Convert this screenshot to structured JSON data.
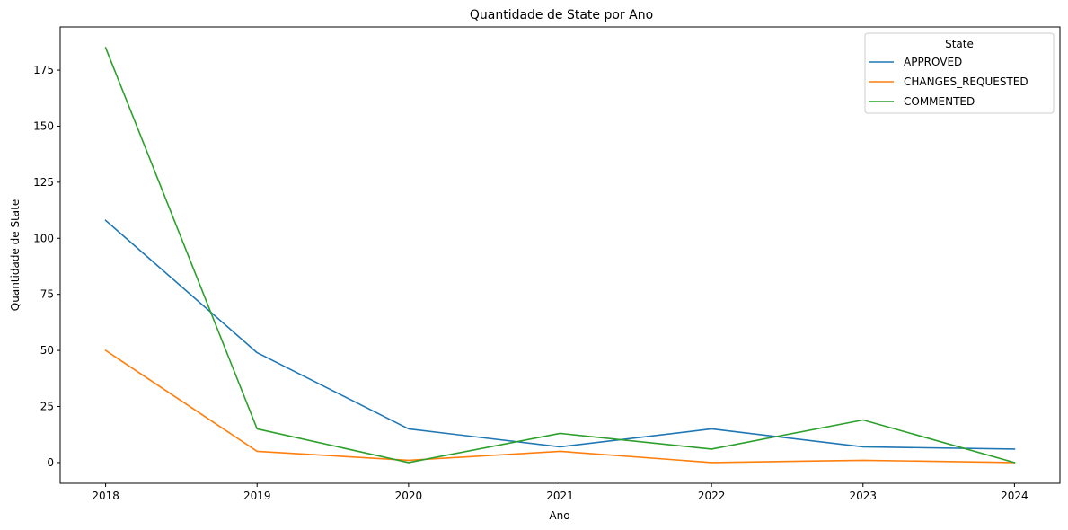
{
  "chart_data": {
    "type": "line",
    "title": "Quantidade de State por Ano",
    "xlabel": "Ano",
    "ylabel": "Quantidade de State",
    "x": [
      2018,
      2019,
      2020,
      2021,
      2022,
      2023,
      2024
    ],
    "xlim": [
      2017.7,
      2024.3
    ],
    "ylim": [
      -9.25,
      194.25
    ],
    "yticks": [
      0,
      25,
      50,
      75,
      100,
      125,
      150,
      175
    ],
    "grid": false,
    "legend": {
      "title": "State",
      "position": "top-right"
    },
    "series": [
      {
        "name": "APPROVED",
        "color": "#1f77b4",
        "values": [
          108,
          49,
          15,
          7,
          15,
          7,
          6
        ]
      },
      {
        "name": "CHANGES_REQUESTED",
        "color": "#ff7f0e",
        "values": [
          50,
          5,
          1,
          5,
          0,
          1,
          0
        ]
      },
      {
        "name": "COMMENTED",
        "color": "#2ca02c",
        "values": [
          185,
          15,
          0,
          13,
          6,
          19,
          0
        ]
      }
    ]
  }
}
